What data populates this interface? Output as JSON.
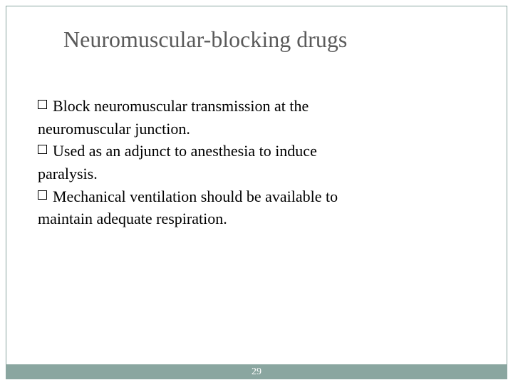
{
  "slide": {
    "title": "Neuromuscular-blocking drugs",
    "title_color": "#5a5a5a",
    "title_fontsize": 32,
    "bullets": [
      {
        "first_line": "Block neuromuscular transmission at the",
        "continuation": "neuromuscular junction."
      },
      {
        "first_line": "Used as an adjunct to anesthesia to induce",
        "continuation": "paralysis."
      },
      {
        "first_line": "Mechanical ventilation should be available to",
        "continuation": "maintain adequate respiration."
      }
    ],
    "body_fontsize": 22,
    "body_color": "#000000",
    "page_number": "29",
    "accent_color": "#8aa6a0",
    "border_color": "#8aa6a0",
    "background_color": "#ffffff",
    "footer_text_color": "#ffffff"
  }
}
